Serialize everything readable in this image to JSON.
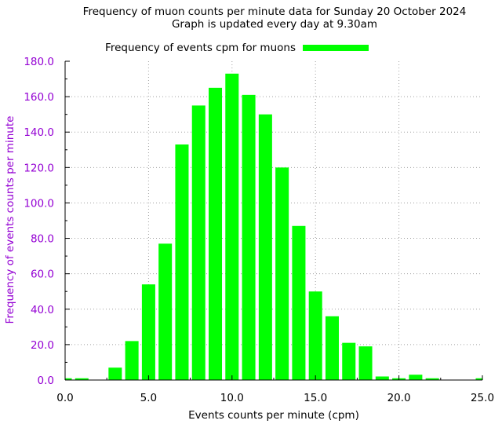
{
  "chart_data": {
    "type": "bar",
    "title_line1": "Frequency of muon counts per minute data for Sunday 20 October 2024",
    "title_line2": "Graph is updated every day at 9.30am",
    "xlabel": "Events counts per minute (cpm)",
    "ylabel": "Frequency of events counts per minute",
    "legend": "Frequency of events cpm for muons",
    "xlim": [
      0,
      25
    ],
    "ylim": [
      0,
      180
    ],
    "x_ticks": [
      "0.0",
      "5.0",
      "10.0",
      "15.0",
      "20.0",
      "25.0"
    ],
    "y_ticks": [
      "0.0",
      "20.0",
      "40.0",
      "60.0",
      "80.0",
      "100.0",
      "120.0",
      "140.0",
      "160.0",
      "180.0"
    ],
    "grid": true,
    "legend_position": "top",
    "colors": {
      "bars": "#00ff00",
      "ytick": "#9400d3",
      "ylabel": "#9400d3"
    },
    "x": [
      0,
      1,
      2,
      3,
      4,
      5,
      6,
      7,
      8,
      9,
      10,
      11,
      12,
      13,
      14,
      15,
      16,
      17,
      18,
      19,
      20,
      21,
      22,
      25
    ],
    "values": [
      1,
      1,
      0,
      7,
      22,
      54,
      77,
      133,
      155,
      165,
      173,
      161,
      150,
      120,
      87,
      50,
      36,
      21,
      19,
      2,
      1,
      3,
      1,
      1
    ]
  }
}
